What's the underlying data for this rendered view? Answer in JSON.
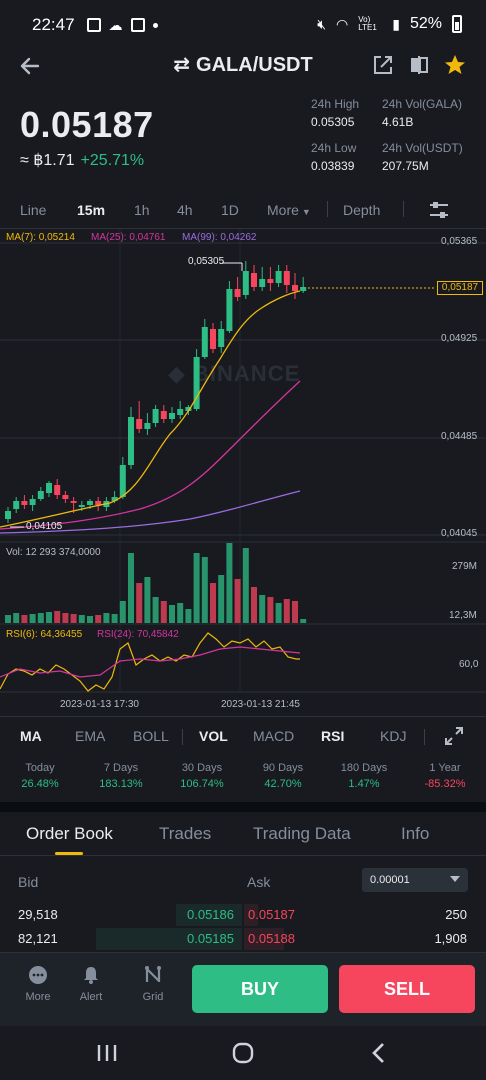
{
  "status_bar": {
    "time": "22:47",
    "battery": "52%",
    "network_label": "Vo) LTE1"
  },
  "header": {
    "title": "GALA/USDT",
    "swap_symbol": "⇄"
  },
  "price": {
    "last": "0.05187",
    "fiat": "≈ ฿1.71",
    "change": "+25.71%",
    "high_label": "24h High",
    "high_value": "0.05305",
    "low_label": "24h Low",
    "low_value": "0.03839",
    "vol_base_label": "24h Vol(GALA)",
    "vol_base_value": "4.61B",
    "vol_quote_label": "24h Vol(USDT)",
    "vol_quote_value": "207.75M"
  },
  "intervals": {
    "items": [
      "Line",
      "15m",
      "1h",
      "4h",
      "1D",
      "More"
    ],
    "active": "15m",
    "depth": "Depth"
  },
  "chart": {
    "ma_legend": {
      "ma7": "MA(7): 0,05214",
      "ma25": "MA(25): 0,04761",
      "ma99": "MA(99): 0,04262"
    },
    "price_axis": [
      "0,05365",
      "0,04925",
      "0,04485",
      "0,04045"
    ],
    "last_price_tag": "0,05187",
    "high_marker": "0,05305",
    "low_marker": "0,04105",
    "watermark": "BINANCE",
    "vol_legend": "Vol: 12 293 374,0000",
    "vol_axis": [
      "279M",
      "12,3M"
    ],
    "rsi_legend": {
      "rsi6": "RSI(6): 64,36455",
      "rsi24": "RSI(24): 70,45842"
    },
    "rsi_axis": "60,0",
    "time_axis": [
      "2023-01-13 17:30",
      "2023-01-13 21:45"
    ],
    "colors": {
      "up": "#2EBD85",
      "down": "#F6465D",
      "ma7": "#F0B90B",
      "ma25": "#D4359F",
      "ma99": "#9B6CE0"
    }
  },
  "indicator_tabs": {
    "items": [
      "MA",
      "EMA",
      "BOLL",
      "VOL",
      "MACD",
      "RSI",
      "KDJ"
    ],
    "active": [
      "MA",
      "VOL",
      "RSI"
    ]
  },
  "performance": [
    {
      "label": "Today",
      "value": "26.48%",
      "dir": "up"
    },
    {
      "label": "7 Days",
      "value": "183.13%",
      "dir": "up"
    },
    {
      "label": "30 Days",
      "value": "106.74%",
      "dir": "up"
    },
    {
      "label": "90 Days",
      "value": "42.70%",
      "dir": "up"
    },
    {
      "label": "180 Days",
      "value": "1.47%",
      "dir": "up"
    },
    {
      "label": "1 Year",
      "value": "-85.32%",
      "dir": "down"
    }
  ],
  "bottom_tabs": {
    "items": [
      "Order Book",
      "Trades",
      "Trading Data",
      "Info"
    ],
    "active": "Order Book"
  },
  "order_book": {
    "bid_label": "Bid",
    "ask_label": "Ask",
    "precision": "0.00001",
    "rows": [
      {
        "bid_qty": "29,518",
        "bid_price": "0.05186",
        "ask_price": "0.05187",
        "ask_qty": "250"
      },
      {
        "bid_qty": "82,121",
        "bid_price": "0.05185",
        "ask_price": "0.05188",
        "ask_qty": "1,908"
      }
    ]
  },
  "action_bar": {
    "more": "More",
    "alert": "Alert",
    "grid": "Grid",
    "buy": "BUY",
    "sell": "SELL"
  }
}
